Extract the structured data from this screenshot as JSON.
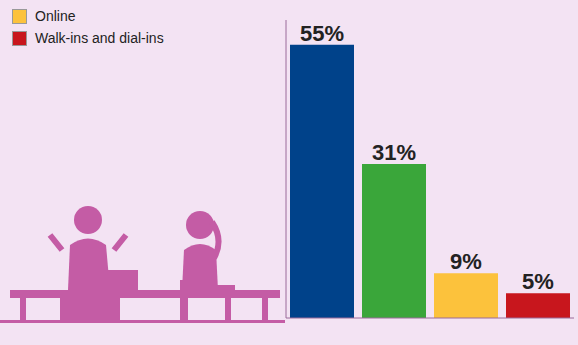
{
  "chart_data": {
    "type": "bar",
    "categories": [
      null,
      null,
      "Online",
      "Walk-ins and dial-ins"
    ],
    "values": [
      55,
      31,
      9,
      5
    ],
    "value_labels": [
      "55%",
      "31%",
      "9%",
      "5%"
    ],
    "colors": [
      "#00428a",
      "#3aa63a",
      "#fcc23c",
      "#c8161d"
    ],
    "ylim": [
      0,
      60
    ],
    "data_labels": true,
    "tick_labels": false,
    "legend": "top-left"
  }
}
